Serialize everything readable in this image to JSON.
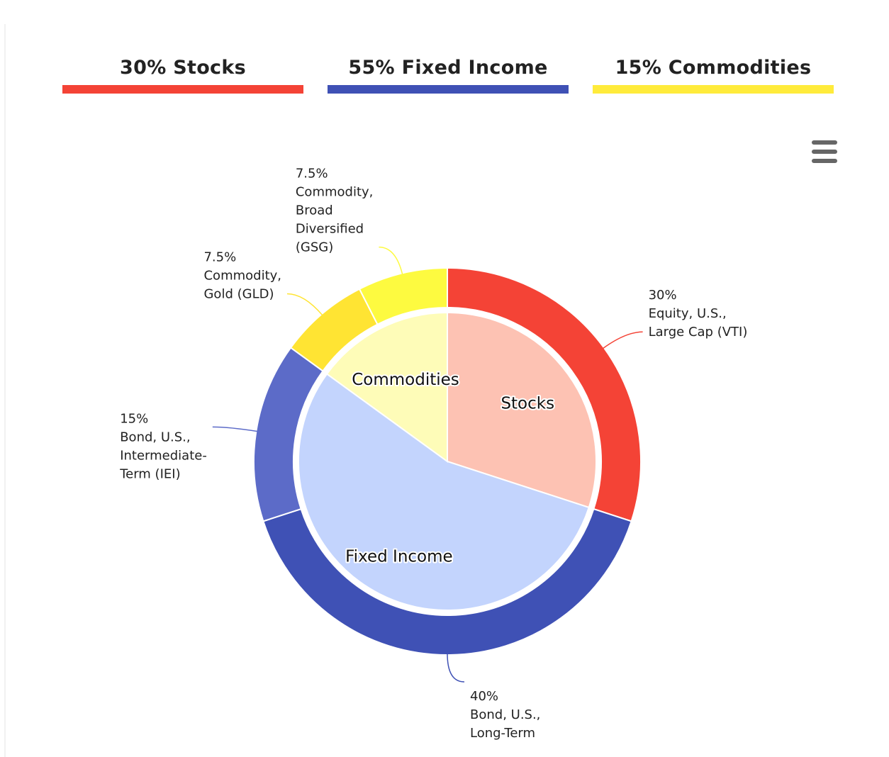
{
  "summary": [
    {
      "label": "30% Stocks",
      "color": "#f44336"
    },
    {
      "label": "55% Fixed Income",
      "color": "#3f51b5"
    },
    {
      "label": "15% Commodities",
      "color": "#ffeb3b"
    }
  ],
  "menu": {
    "icon": "hamburger-menu-icon"
  },
  "chart_data": {
    "type": "pie",
    "variant": "nested-donut",
    "start_angle_deg": 0,
    "direction": "clockwise",
    "inner": {
      "categories": [
        "Stocks",
        "Fixed Income",
        "Commodities"
      ],
      "values": [
        30,
        55,
        15
      ],
      "colors": [
        "#fdc2b3",
        "#c3d4fd",
        "#fefcb8"
      ]
    },
    "outer": {
      "slices": [
        {
          "value": 30,
          "lines": [
            "30%",
            "Equity, U.S.,",
            "Large Cap (VTI)"
          ],
          "color": "#f44336"
        },
        {
          "value": 40,
          "lines": [
            "40%",
            "Bond, U.S.,",
            "Long-Term"
          ],
          "color": "#3f51b5"
        },
        {
          "value": 15,
          "lines": [
            "15%",
            "Bond, U.S.,",
            "Intermediate-",
            "Term (IEI)"
          ],
          "color": "#5c6bc8"
        },
        {
          "value": 7.5,
          "lines": [
            "7.5%",
            "Commodity,",
            "Gold (GLD)"
          ],
          "color": "#ffe433"
        },
        {
          "value": 7.5,
          "lines": [
            "7.5%",
            "Commodity,",
            "Broad",
            "Diversified",
            "(GSG)"
          ],
          "color": "#fdfa40"
        }
      ]
    }
  }
}
